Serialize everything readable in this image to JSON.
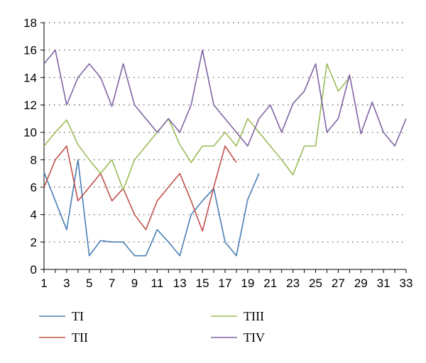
{
  "chart_data": {
    "type": "line",
    "title": "",
    "xlabel": "",
    "ylabel": "",
    "ylim": [
      0,
      18
    ],
    "y_ticks": [
      0,
      2,
      4,
      6,
      8,
      10,
      12,
      14,
      16,
      18
    ],
    "x_ticks": [
      1,
      3,
      5,
      7,
      9,
      11,
      13,
      15,
      17,
      19,
      21,
      23,
      25,
      27,
      29,
      31,
      33
    ],
    "xlim": [
      1,
      33
    ],
    "grid": "horizontal-dotted",
    "legend_position": "bottom",
    "series": [
      {
        "name": "TI",
        "color": "#4a7fb5",
        "start_x": 1,
        "values": [
          7.1,
          5,
          2.9,
          8,
          1,
          2.1,
          2,
          2,
          1,
          1,
          2.9,
          2,
          1,
          4,
          5,
          5.9,
          2,
          1,
          5.1,
          7
        ]
      },
      {
        "name": "TII",
        "color": "#c0504d",
        "start_x": 1,
        "values": [
          6,
          8,
          9,
          5,
          6,
          7,
          5,
          5.9,
          4,
          2.9,
          5,
          6,
          7,
          5,
          2.8,
          6,
          9,
          7.8
        ]
      },
      {
        "name": "TIII",
        "color": "#9bbb59",
        "start_x": 1,
        "values": [
          9,
          10,
          10.9,
          9.1,
          8,
          7,
          8,
          5.8,
          8,
          9,
          10,
          11,
          9.1,
          7.8,
          9,
          9,
          10,
          9,
          11,
          10,
          9,
          8,
          6.9,
          9,
          9,
          15,
          13,
          14
        ]
      },
      {
        "name": "TIV",
        "color": "#8064a2",
        "start_x": 1,
        "values": [
          15,
          16,
          12,
          14,
          15,
          14,
          11.9,
          15,
          12,
          11,
          10,
          11,
          10,
          12,
          16,
          12,
          11,
          10,
          9,
          11,
          12,
          10,
          12.1,
          13,
          15,
          10,
          11,
          14.2,
          9.9,
          12.2,
          10,
          9,
          11
        ]
      }
    ]
  }
}
